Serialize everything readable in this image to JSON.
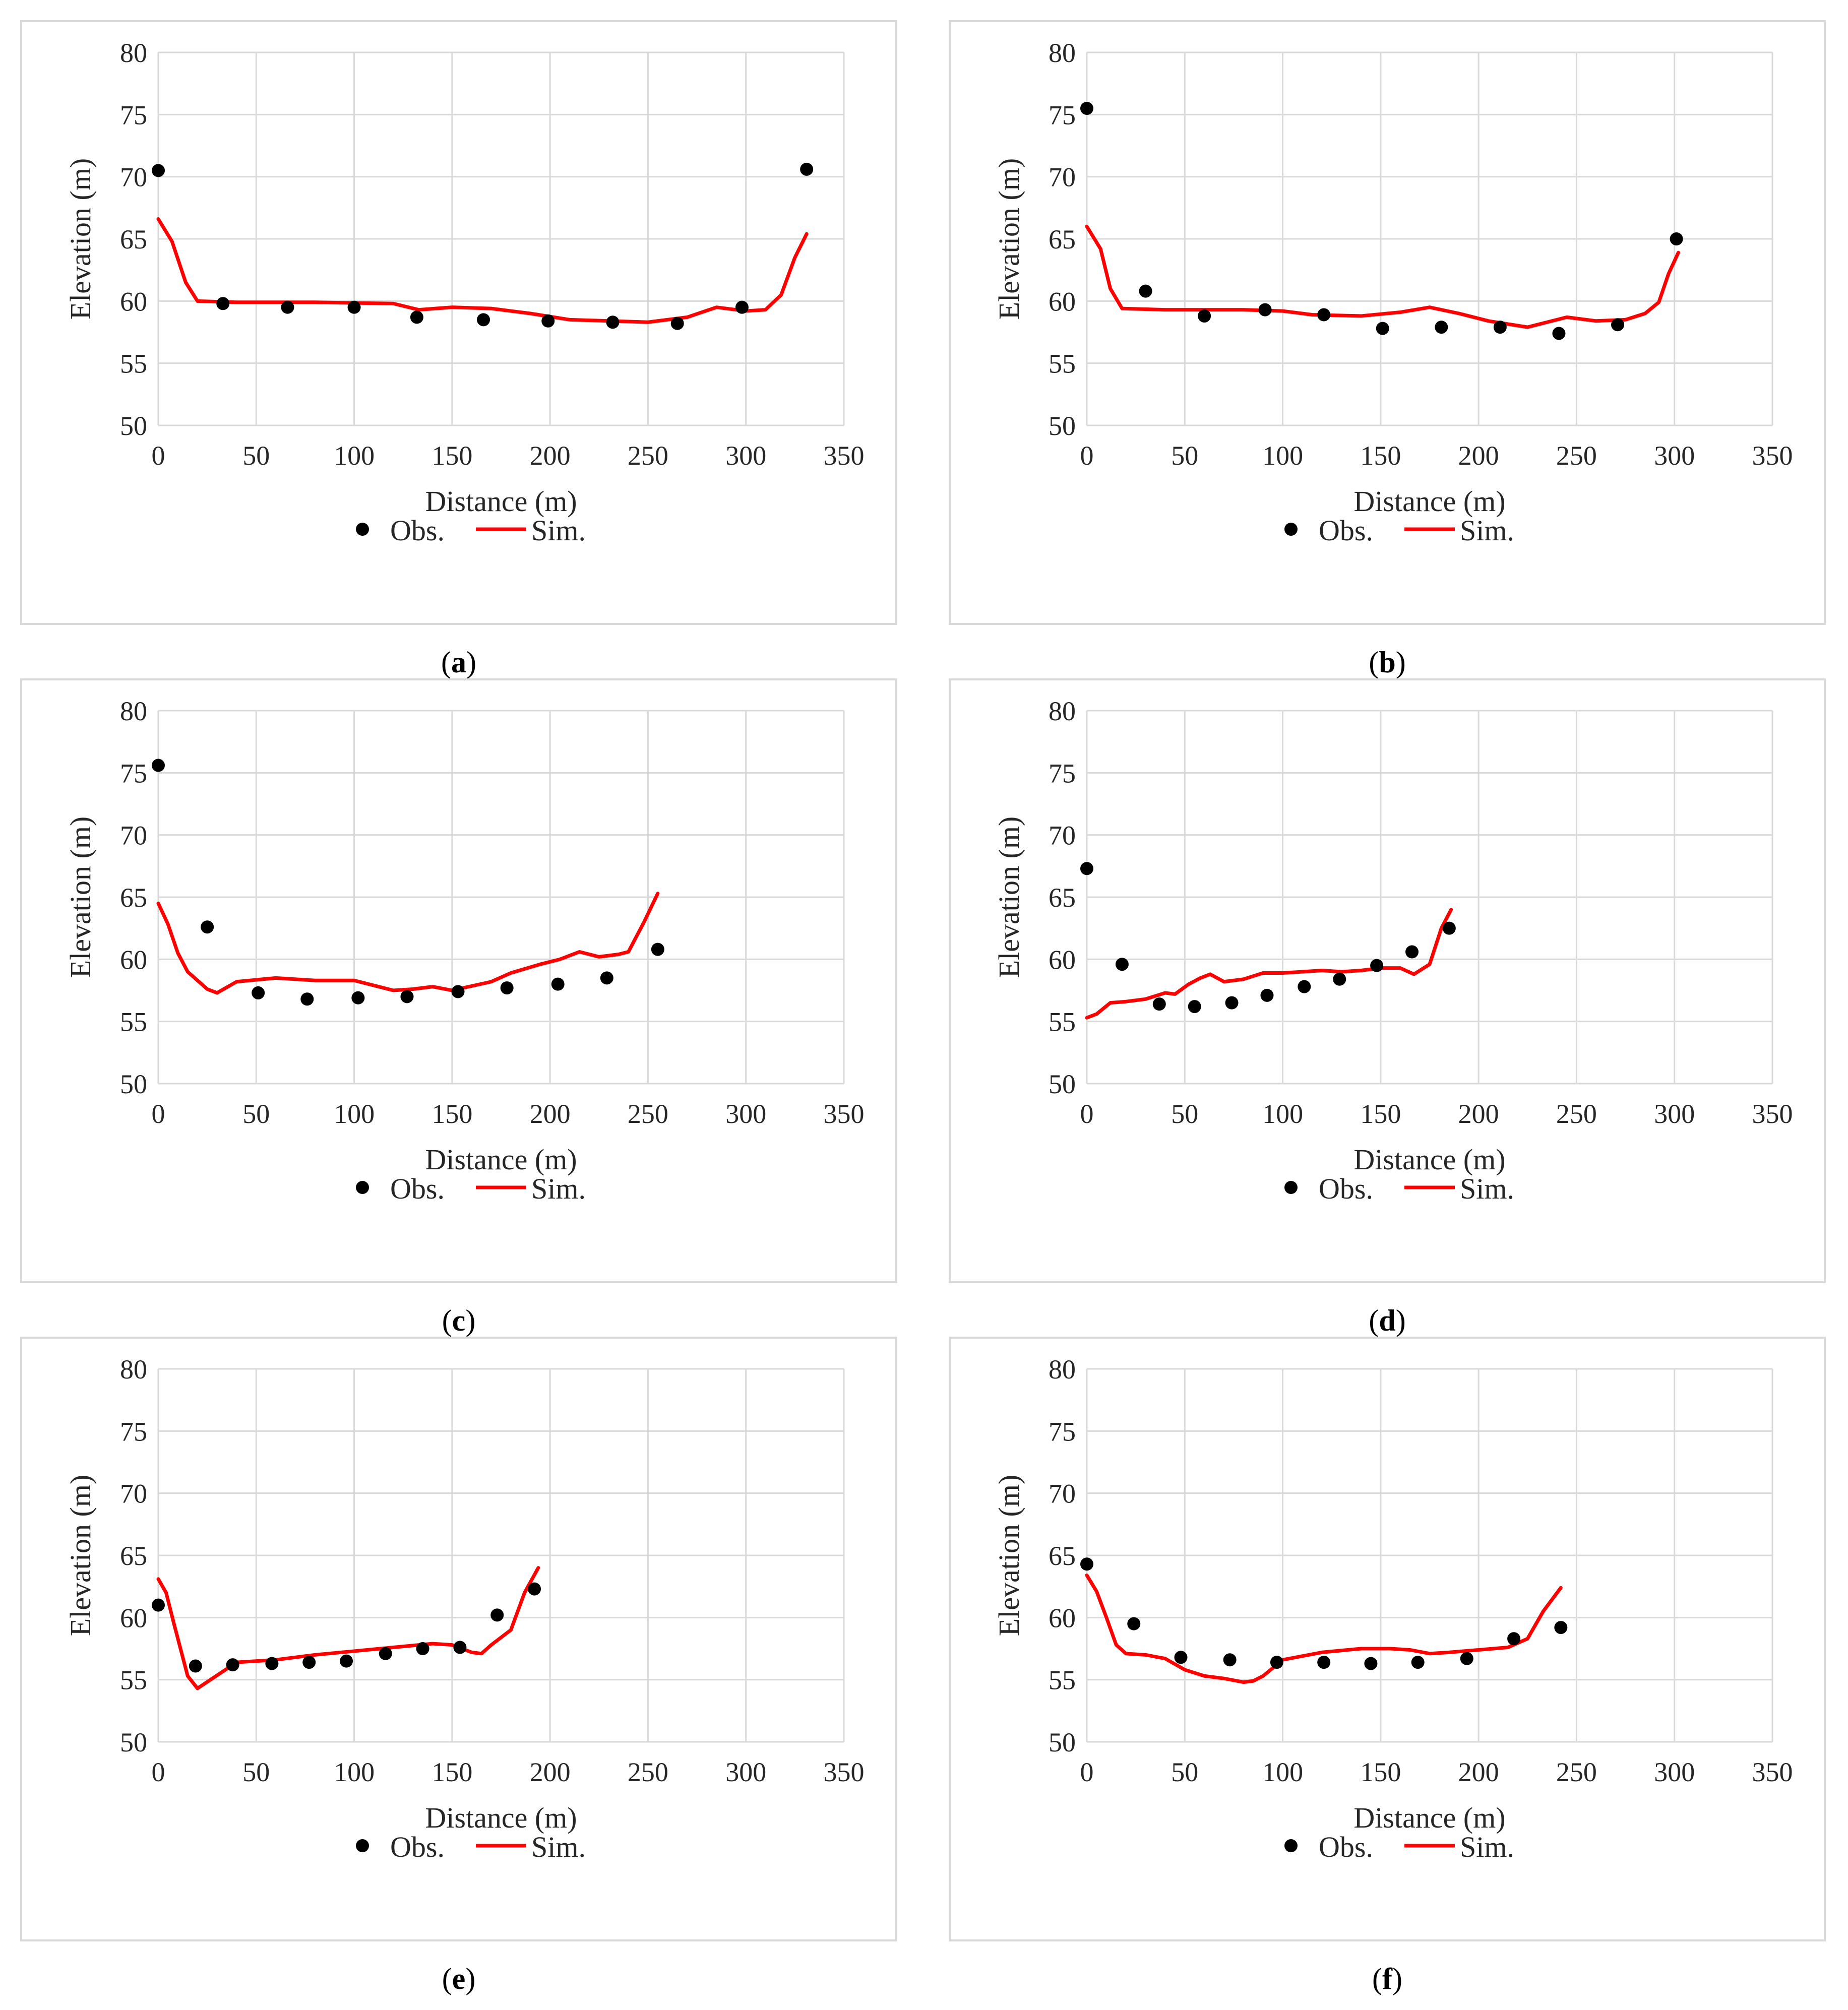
{
  "colors": {
    "observed": "#000000",
    "simulated": "#ff0000",
    "grid": "#d9d9d9",
    "frame": "#d9d9d9",
    "text": "#262626"
  },
  "axes": {
    "xlabel": "Distance (m)",
    "ylabel": "Elevation (m)",
    "xlim": [
      0,
      350
    ],
    "ylim": [
      50,
      80
    ],
    "xticks": [
      0,
      50,
      100,
      150,
      200,
      250,
      300,
      350
    ],
    "yticks": [
      50,
      55,
      60,
      65,
      70,
      75,
      80
    ]
  },
  "legend": {
    "observed_label": "Obs.",
    "simulated_label": "Sim.",
    "placement": "bottom-center"
  },
  "chart_data": [
    {
      "type": "scatter+line",
      "caption": "a",
      "xlabel": "Distance (m)",
      "ylabel": "Elevation (m)",
      "xlim": [
        0,
        350
      ],
      "ylim": [
        50,
        80
      ],
      "series": [
        {
          "name": "Obs.",
          "type": "scatter",
          "x": [
            0,
            33,
            66,
            100,
            132,
            166,
            199,
            232,
            265,
            298,
            331
          ],
          "y": [
            70.5,
            59.8,
            59.5,
            59.5,
            58.7,
            58.5,
            58.4,
            58.3,
            58.2,
            59.5,
            70.6
          ]
        },
        {
          "name": "Sim.",
          "type": "line",
          "x": [
            0,
            7,
            14,
            20,
            40,
            80,
            120,
            133,
            150,
            170,
            190,
            210,
            230,
            250,
            270,
            285,
            300,
            310,
            318,
            325,
            331
          ],
          "y": [
            66.6,
            64.8,
            61.5,
            60.0,
            59.9,
            59.9,
            59.8,
            59.3,
            59.5,
            59.4,
            59.0,
            58.5,
            58.4,
            58.3,
            58.7,
            59.5,
            59.2,
            59.3,
            60.5,
            63.5,
            65.4
          ]
        }
      ]
    },
    {
      "type": "scatter+line",
      "caption": "b",
      "xlabel": "Distance (m)",
      "ylabel": "Elevation (m)",
      "xlim": [
        0,
        350
      ],
      "ylim": [
        50,
        80
      ],
      "series": [
        {
          "name": "Obs.",
          "type": "scatter",
          "x": [
            0,
            30,
            60,
            91,
            121,
            151,
            181,
            211,
            241,
            271,
            301
          ],
          "y": [
            75.5,
            60.8,
            58.8,
            59.3,
            58.9,
            57.8,
            57.9,
            57.9,
            57.4,
            58.1,
            65.0
          ]
        },
        {
          "name": "Sim.",
          "type": "line",
          "x": [
            0,
            7,
            12,
            18,
            40,
            80,
            100,
            115,
            140,
            160,
            175,
            190,
            205,
            225,
            245,
            260,
            275,
            285,
            292,
            297,
            302
          ],
          "y": [
            66.0,
            64.2,
            61.0,
            59.4,
            59.3,
            59.3,
            59.2,
            58.9,
            58.8,
            59.1,
            59.5,
            59.0,
            58.4,
            57.9,
            58.7,
            58.4,
            58.5,
            59.0,
            59.9,
            62.2,
            63.9
          ]
        }
      ]
    },
    {
      "type": "scatter+line",
      "caption": "c",
      "xlabel": "Distance (m)",
      "ylabel": "Elevation (m)",
      "xlim": [
        0,
        350
      ],
      "ylim": [
        50,
        80
      ],
      "series": [
        {
          "name": "Obs.",
          "type": "scatter",
          "x": [
            0,
            25,
            51,
            76,
            102,
            127,
            153,
            178,
            204,
            229,
            255
          ],
          "y": [
            75.6,
            62.6,
            57.3,
            56.8,
            56.9,
            57.0,
            57.4,
            57.7,
            58.0,
            58.5,
            60.8
          ]
        },
        {
          "name": "Sim.",
          "type": "line",
          "x": [
            0,
            5,
            10,
            15,
            25,
            30,
            40,
            60,
            80,
            100,
            120,
            130,
            140,
            150,
            170,
            180,
            195,
            205,
            215,
            225,
            235,
            240,
            248,
            255
          ],
          "y": [
            64.5,
            62.8,
            60.5,
            59.0,
            57.6,
            57.3,
            58.2,
            58.5,
            58.3,
            58.3,
            57.5,
            57.6,
            57.8,
            57.5,
            58.2,
            58.9,
            59.6,
            60.0,
            60.6,
            60.2,
            60.4,
            60.6,
            63.0,
            65.3
          ]
        }
      ]
    },
    {
      "type": "scatter+line",
      "caption": "d",
      "xlabel": "Distance (m)",
      "ylabel": "Elevation (m)",
      "xlim": [
        0,
        350
      ],
      "ylim": [
        50,
        80
      ],
      "series": [
        {
          "name": "Obs.",
          "type": "scatter",
          "x": [
            0,
            18,
            37,
            55,
            74,
            92,
            111,
            129,
            148,
            166,
            185
          ],
          "y": [
            67.3,
            59.6,
            56.4,
            56.2,
            56.5,
            57.1,
            57.8,
            58.4,
            59.5,
            60.6,
            62.5
          ]
        },
        {
          "name": "Sim.",
          "type": "line",
          "x": [
            0,
            5,
            12,
            20,
            30,
            40,
            45,
            52,
            58,
            63,
            70,
            80,
            90,
            100,
            110,
            120,
            130,
            140,
            150,
            160,
            167,
            175,
            181,
            186
          ],
          "y": [
            55.3,
            55.6,
            56.5,
            56.6,
            56.8,
            57.3,
            57.2,
            58.0,
            58.5,
            58.8,
            58.2,
            58.4,
            58.9,
            58.9,
            59.0,
            59.1,
            59.0,
            59.1,
            59.3,
            59.3,
            58.8,
            59.6,
            62.5,
            64.0
          ]
        }
      ]
    },
    {
      "type": "scatter+line",
      "caption": "e",
      "xlabel": "Distance (m)",
      "ylabel": "Elevation (m)",
      "xlim": [
        0,
        350
      ],
      "ylim": [
        50,
        80
      ],
      "series": [
        {
          "name": "Obs.",
          "type": "scatter",
          "x": [
            0,
            19,
            38,
            58,
            77,
            96,
            116,
            135,
            154,
            173,
            192
          ],
          "y": [
            61.0,
            56.1,
            56.2,
            56.3,
            56.4,
            56.5,
            57.1,
            57.5,
            57.6,
            60.2,
            62.3
          ]
        },
        {
          "name": "Sim.",
          "type": "line",
          "x": [
            0,
            4,
            8,
            15,
            20,
            40,
            60,
            80,
            100,
            120,
            140,
            150,
            160,
            165,
            170,
            180,
            187,
            194
          ],
          "y": [
            63.1,
            62.0,
            59.5,
            55.3,
            54.3,
            56.4,
            56.6,
            57.0,
            57.3,
            57.6,
            57.9,
            57.8,
            57.2,
            57.1,
            57.8,
            59.0,
            62.0,
            64.0
          ]
        }
      ]
    },
    {
      "type": "scatter+line",
      "caption": "f",
      "xlabel": "Distance (m)",
      "ylabel": "Elevation (m)",
      "xlim": [
        0,
        350
      ],
      "ylim": [
        50,
        80
      ],
      "series": [
        {
          "name": "Obs.",
          "type": "scatter",
          "x": [
            0,
            24,
            48,
            73,
            97,
            121,
            145,
            169,
            194,
            218,
            242
          ],
          "y": [
            64.3,
            59.5,
            56.8,
            56.6,
            56.4,
            56.4,
            56.3,
            56.4,
            56.7,
            58.3,
            59.2
          ]
        },
        {
          "name": "Sim.",
          "type": "line",
          "x": [
            0,
            5,
            10,
            15,
            20,
            30,
            40,
            50,
            60,
            70,
            80,
            85,
            90,
            100,
            120,
            140,
            155,
            165,
            175,
            185,
            200,
            215,
            225,
            233,
            242
          ],
          "y": [
            63.4,
            62.1,
            60.0,
            57.8,
            57.1,
            57.0,
            56.7,
            55.8,
            55.3,
            55.1,
            54.8,
            54.9,
            55.3,
            56.6,
            57.2,
            57.5,
            57.5,
            57.4,
            57.1,
            57.2,
            57.4,
            57.6,
            58.3,
            60.5,
            62.4
          ]
        }
      ]
    }
  ]
}
